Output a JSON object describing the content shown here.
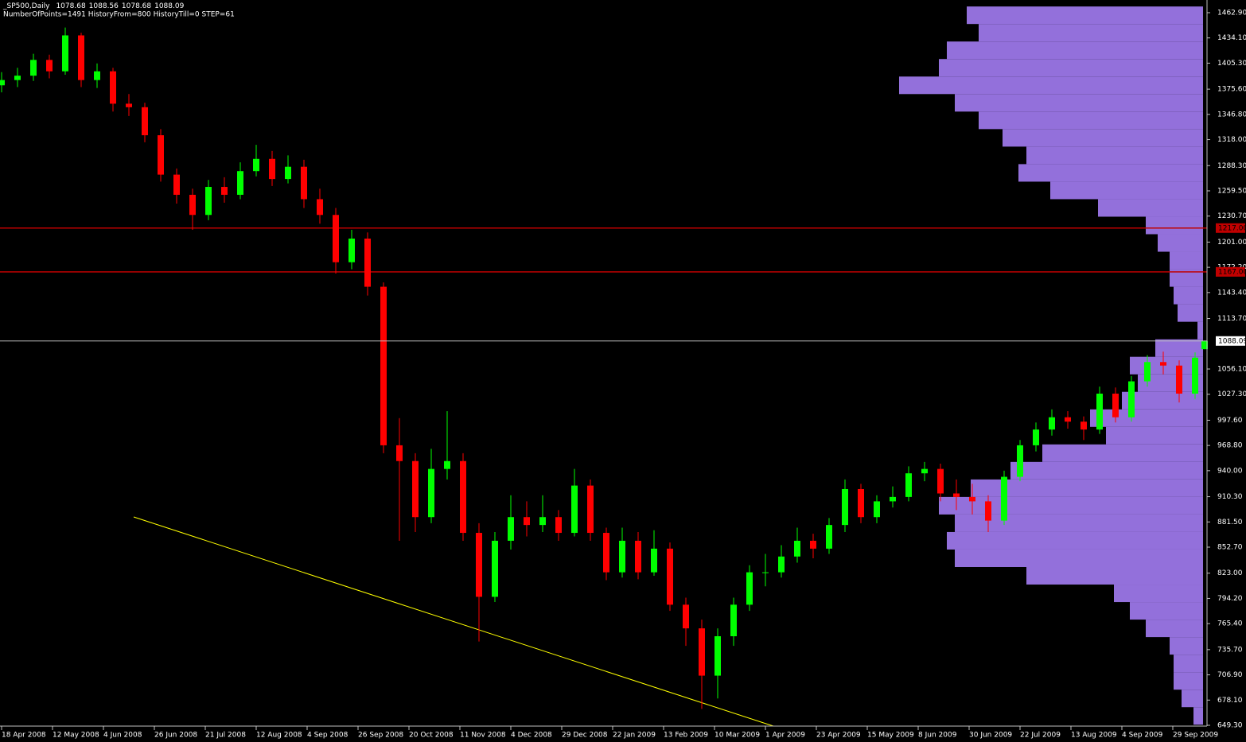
{
  "chart_data": {
    "type": "candlestick",
    "title": "_SP500,Daily",
    "subtitle": "NumberOfPoints=1491 HistoryFrom=800 HistoryTill=0 STEP=61",
    "x": [
      0,
      5,
      10,
      15,
      20,
      25,
      30,
      35,
      40,
      45,
      50,
      55,
      60,
      65,
      70,
      75,
      80,
      85,
      90,
      95,
      100,
      105,
      110,
      115,
      120,
      125,
      130,
      135,
      140,
      145,
      150,
      155,
      160,
      165,
      170,
      175,
      180,
      185,
      190,
      195,
      200,
      205,
      210,
      215,
      220,
      225,
      230,
      235,
      240,
      245,
      250,
      255,
      260,
      265,
      270,
      275,
      280,
      285,
      290,
      295,
      300,
      305,
      310,
      315,
      320,
      325,
      330,
      335,
      340,
      345,
      350,
      355,
      360,
      365,
      370,
      375,
      378
    ],
    "open": [
      1380,
      1386,
      1391,
      1409,
      1396,
      1437,
      1386,
      1396,
      1359,
      1355,
      1323,
      1278,
      1255,
      1232,
      1264,
      1255,
      1282,
      1296,
      1273,
      1287,
      1250,
      1232,
      1178,
      1205,
      1150,
      969,
      951,
      887,
      942,
      951,
      869,
      796,
      860,
      887,
      878,
      887,
      869,
      923,
      869,
      824,
      860,
      824,
      851,
      787,
      760,
      706,
      751,
      787,
      824,
      824,
      842,
      860,
      851,
      878,
      919,
      887,
      905,
      910,
      937,
      942,
      914,
      910,
      905,
      883,
      933,
      969,
      987,
      1001,
      996,
      987,
      1028,
      1001,
      1042,
      1064,
      1060,
      1028,
      1078.68
    ],
    "high": [
      1395,
      1400,
      1416,
      1415,
      1446,
      1440,
      1405,
      1400,
      1370,
      1360,
      1330,
      1285,
      1262,
      1272,
      1275,
      1292,
      1312,
      1305,
      1300,
      1295,
      1262,
      1240,
      1215,
      1212,
      1155,
      1000,
      960,
      965,
      1008,
      960,
      880,
      870,
      912,
      905,
      912,
      895,
      942,
      930,
      875,
      875,
      870,
      872,
      858,
      795,
      770,
      760,
      795,
      832,
      845,
      855,
      875,
      868,
      886,
      930,
      925,
      912,
      922,
      945,
      950,
      948,
      930,
      925,
      912,
      940,
      975,
      995,
      1010,
      1008,
      1002,
      1036,
      1035,
      1048,
      1072,
      1076,
      1066,
      1075,
      1088.56
    ],
    "low": [
      1372,
      1378,
      1385,
      1388,
      1392,
      1378,
      1377,
      1350,
      1345,
      1315,
      1270,
      1245,
      1215,
      1226,
      1246,
      1250,
      1276,
      1265,
      1268,
      1240,
      1222,
      1165,
      1170,
      1140,
      960,
      860,
      870,
      880,
      930,
      860,
      745,
      790,
      850,
      865,
      870,
      860,
      865,
      860,
      815,
      818,
      816,
      820,
      780,
      740,
      668,
      680,
      740,
      780,
      808,
      818,
      835,
      840,
      845,
      870,
      880,
      880,
      898,
      905,
      928,
      905,
      895,
      890,
      870,
      878,
      928,
      962,
      980,
      988,
      975,
      982,
      995,
      996,
      1036,
      1050,
      1018,
      1022,
      1078.68
    ],
    "close": [
      1386,
      1391,
      1409,
      1396,
      1437,
      1386,
      1396,
      1359,
      1355,
      1323,
      1278,
      1255,
      1232,
      1264,
      1255,
      1282,
      1296,
      1273,
      1287,
      1250,
      1232,
      1178,
      1205,
      1150,
      969,
      951,
      887,
      942,
      951,
      869,
      796,
      860,
      887,
      878,
      887,
      869,
      923,
      869,
      824,
      860,
      824,
      851,
      787,
      760,
      706,
      751,
      787,
      824,
      824,
      842,
      860,
      851,
      878,
      919,
      887,
      905,
      910,
      937,
      942,
      914,
      910,
      905,
      883,
      933,
      969,
      987,
      1001,
      996,
      987,
      1028,
      1001,
      1042,
      1064,
      1060,
      1028,
      1069,
      1088.09
    ],
    "up_color": "#00ff00",
    "down_color": "#ff0000",
    "xlim": [
      -0.5,
      378.25
    ],
    "xticks": [
      {
        "value": 0,
        "label": "18 Apr 2008"
      },
      {
        "value": 16,
        "label": "12 May 2008"
      },
      {
        "value": 32,
        "label": "4 Jun 2008"
      },
      {
        "value": 48,
        "label": "26 Jun 2008"
      },
      {
        "value": 64,
        "label": "21 Jul 2008"
      },
      {
        "value": 80,
        "label": "12 Aug 2008"
      },
      {
        "value": 96,
        "label": "4 Sep 2008"
      },
      {
        "value": 112,
        "label": "26 Sep 2008"
      },
      {
        "value": 128,
        "label": "20 Oct 2008"
      },
      {
        "value": 144,
        "label": "11 Nov 2008"
      },
      {
        "value": 160,
        "label": "4 Dec 2008"
      },
      {
        "value": 176,
        "label": "29 Dec 2008"
      },
      {
        "value": 192,
        "label": "22 Jan 2009"
      },
      {
        "value": 208,
        "label": "13 Feb 2009"
      },
      {
        "value": 224,
        "label": "10 Mar 2009"
      },
      {
        "value": 240,
        "label": "1 Apr 2009"
      },
      {
        "value": 256,
        "label": "23 Apr 2009"
      },
      {
        "value": 272,
        "label": "15 May 2009"
      },
      {
        "value": 288,
        "label": "8 Jun 2009"
      },
      {
        "value": 304,
        "label": "30 Jun 2009"
      },
      {
        "value": 320,
        "label": "22 Jul 2009"
      },
      {
        "value": 336,
        "label": "13 Aug 2009"
      },
      {
        "value": 352,
        "label": "4 Sep 2009"
      },
      {
        "value": 368,
        "label": "29 Sep 2009"
      }
    ],
    "ylim": [
      648.4,
      1477.4
    ],
    "yticks": [
      {
        "value": 1462.9,
        "label": "1462.90"
      },
      {
        "value": 1434.1,
        "label": "1434.10"
      },
      {
        "value": 1405.3,
        "label": "1405.30"
      },
      {
        "value": 1375.6,
        "label": "1375.60"
      },
      {
        "value": 1346.8,
        "label": "1346.80"
      },
      {
        "value": 1318,
        "label": "1318.00"
      },
      {
        "value": 1288.3,
        "label": "1288.30"
      },
      {
        "value": 1259.5,
        "label": "1259.50"
      },
      {
        "value": 1230.7,
        "label": "1230.70"
      },
      {
        "value": 1201,
        "label": "1201.00"
      },
      {
        "value": 1172.2,
        "label": "1172.20"
      },
      {
        "value": 1143.4,
        "label": "1143.40"
      },
      {
        "value": 1113.7,
        "label": "1113.70"
      },
      {
        "value": 1056.1,
        "label": "1056.10"
      },
      {
        "value": 1027.3,
        "label": "1027.30"
      },
      {
        "value": 997.6,
        "label": "997.60"
      },
      {
        "value": 968.8,
        "label": "968.80"
      },
      {
        "value": 940,
        "label": "940.00"
      },
      {
        "value": 910.3,
        "label": "910.30"
      },
      {
        "value": 881.5,
        "label": "881.50"
      },
      {
        "value": 852.7,
        "label": "852.70"
      },
      {
        "value": 823,
        "label": "823.00"
      },
      {
        "value": 794.2,
        "label": "794.20"
      },
      {
        "value": 765.4,
        "label": "765.40"
      },
      {
        "value": 735.7,
        "label": "735.70"
      },
      {
        "value": 706.9,
        "label": "706.90"
      },
      {
        "value": 678.1,
        "label": "678.10"
      },
      {
        "value": 649.3,
        "label": "649.30"
      }
    ],
    "profile": {
      "color": "#9370db",
      "step": 20,
      "xlim": [
        0,
        400
      ],
      "levels": [
        1460,
        1440,
        1420,
        1400,
        1380,
        1360,
        1340,
        1320,
        1300,
        1280,
        1260,
        1240,
        1220,
        1200,
        1180,
        1160,
        1140,
        1120,
        1100,
        1080,
        1060,
        1040,
        1020,
        1000,
        980,
        960,
        940,
        920,
        900,
        880,
        860,
        840,
        820,
        800,
        780,
        760,
        740,
        720,
        700,
        680,
        660
      ],
      "counts": [
        297,
        282,
        322,
        332,
        382,
        312,
        282,
        252,
        222,
        232,
        192,
        132,
        72,
        57,
        42,
        42,
        37,
        32,
        7,
        60,
        92,
        82,
        102,
        142,
        122,
        202,
        242,
        292,
        332,
        312,
        322,
        312,
        222,
        112,
        92,
        72,
        42,
        37,
        37,
        27,
        12
      ]
    },
    "hlines": [
      {
        "value": 1217,
        "label": "1217.00",
        "color": "#c00000"
      },
      {
        "value": 1167,
        "label": "1167.00",
        "color": "#c00000"
      }
    ],
    "price_line_color": "#c0c0c0",
    "trendline": {
      "x": [
        41.5,
        242.5
      ],
      "y": [
        887.2,
        648.4
      ],
      "color": "#ffff00"
    }
  }
}
